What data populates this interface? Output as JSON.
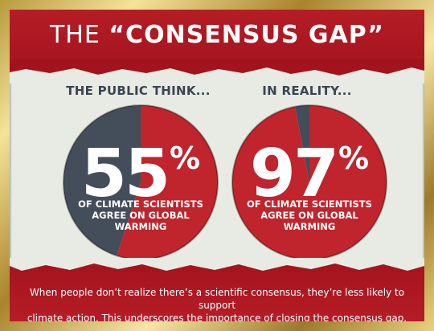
{
  "title": {
    "light": "THE ",
    "bold": "“CONSENSUS GAP”"
  },
  "colors": {
    "red": "#c0242c",
    "slate": "#444d5a",
    "band": "#a3131d",
    "background": "#e8ebe3"
  },
  "chart_data": [
    {
      "type": "pie",
      "title": "THE PUBLIC THINK...",
      "categories": [
        "Agree",
        "Other"
      ],
      "values": [
        55,
        45
      ],
      "colors": [
        "#c0242c",
        "#444d5a"
      ],
      "label_value": "55",
      "label_unit": "%",
      "caption": [
        "OF CLIMATE SCIENTISTS",
        "AGREE ON GLOBAL",
        "WARMING"
      ]
    },
    {
      "type": "pie",
      "title": "IN REALITY...",
      "categories": [
        "Agree",
        "Other"
      ],
      "values": [
        97,
        3
      ],
      "colors": [
        "#c0242c",
        "#444d5a"
      ],
      "label_value": "97",
      "label_unit": "%",
      "caption": [
        "OF CLIMATE SCIENTISTS",
        "AGREE ON GLOBAL",
        "WARMING"
      ]
    }
  ],
  "footer": {
    "line1": "When people don’t realize there’s a scientific consensus, they’re less likely to support",
    "line2": "climate action. This underscores the importance of closing the consensus gap."
  }
}
